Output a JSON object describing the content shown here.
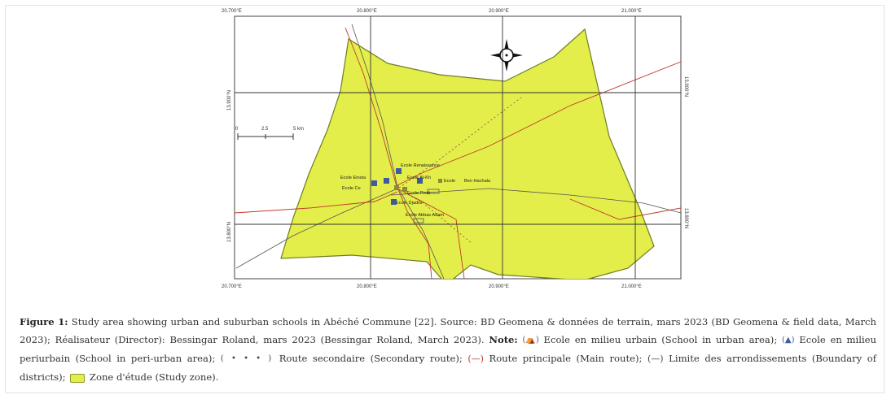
{
  "map": {
    "graticule_top": [
      "20.700°E",
      "20.800°E",
      "20.900°E",
      "21.000°E"
    ],
    "graticule_bottom": [
      "20.700°E",
      "20.800°E",
      "20.900°E",
      "21.000°E"
    ],
    "graticule_left": [
      "13.900°N",
      "13.800°N"
    ],
    "graticule_right": [
      "13.900°N",
      "13.800°N"
    ],
    "scale_bar": {
      "labels": [
        "0",
        "2.5",
        "5 km"
      ]
    },
    "compass_icon": "north-arrow-icon",
    "schools": [
      {
        "label": "Ecole Renaissance"
      },
      {
        "label": "Ecole Einsta"
      },
      {
        "label": "Ecole Al-Kh"
      },
      {
        "label": "Ecole Ce"
      },
      {
        "label": "Ecole Pindi"
      },
      {
        "label": "Ecole Djadra"
      },
      {
        "label": "Ecole"
      },
      {
        "label": "Ben Hachala"
      },
      {
        "label": "Ecole Abbas Adam"
      }
    ],
    "colors": {
      "study_zone_fill": "#e3ee4a",
      "study_zone_stroke": "#6f7d20",
      "main_route": "#c0392b",
      "secondary_route": "#8a4a4a",
      "peri_urban_school": "#3d5b9e",
      "urban_school": "#8a8a3a"
    }
  },
  "caption": {
    "figure_label": "Figure 1:",
    "text_1": "Study area showing urban and suburban schools in Abéché Commune [22]. Source: BD Geomena & données de terrain, mars 2023 (BD Geomena & field data, March 2023); Réalisateur (Director): Bessingar Roland, mars 2023 (Bessingar Roland, March 2023).",
    "note_label": "Note:",
    "legend": [
      {
        "symbol": "(⛺)",
        "text": "Ecole en milieu urbain (School in urban area);"
      },
      {
        "symbol": "(▲)",
        "text": "Ecole en milieu periurbain (School in peri-urban area);"
      },
      {
        "symbol": "( • • • )",
        "text": "Route secondaire (Secondary route);"
      },
      {
        "symbol": "(—)",
        "text": "Route principale (Main route);"
      },
      {
        "symbol": "(—)",
        "text": "Limite des arrondissements (Boundary of districts);"
      },
      {
        "symbol": "zone",
        "text": "Zone d'étude (Study zone)."
      }
    ]
  }
}
